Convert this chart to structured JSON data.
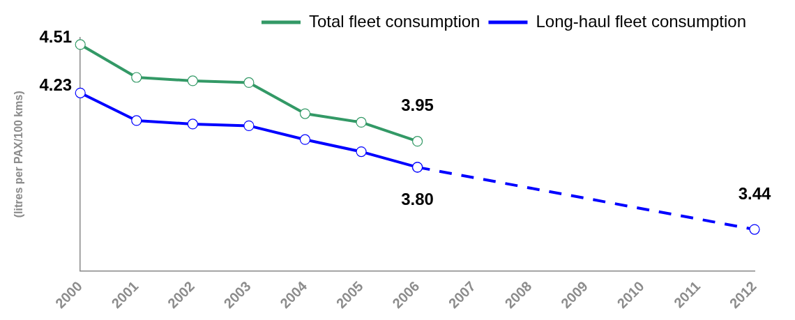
{
  "chart_data": {
    "type": "line",
    "ylabel": "(litres per PAX/100 kms)",
    "categories": [
      "2000",
      "2001",
      "2002",
      "2003",
      "2004",
      "2005",
      "2006",
      "2007",
      "2008",
      "2009",
      "2010",
      "2011",
      "2012"
    ],
    "series": [
      {
        "name": "Total fleet consumption",
        "color": "#339966",
        "values": [
          4.51,
          4.32,
          4.3,
          4.29,
          4.11,
          4.06,
          3.95,
          null,
          null,
          null,
          null,
          null,
          null
        ],
        "value_labels": [
          "4.51",
          null,
          null,
          null,
          null,
          null,
          "3.95",
          null,
          null,
          null,
          null,
          null,
          null
        ]
      },
      {
        "name": "Long-haul fleet consumption",
        "color": "#0000ff",
        "values": [
          4.23,
          4.07,
          4.05,
          4.04,
          3.96,
          3.89,
          3.8,
          null,
          null,
          null,
          null,
          null,
          null
        ],
        "value_labels": [
          "4.23",
          null,
          null,
          null,
          null,
          null,
          "3.80",
          null,
          null,
          null,
          null,
          null,
          null
        ]
      },
      {
        "color": "#0000ff",
        "line_style": "dashed",
        "values": [
          null,
          null,
          null,
          null,
          null,
          null,
          3.8,
          null,
          null,
          null,
          null,
          null,
          3.44
        ],
        "value_labels": [
          null,
          null,
          null,
          null,
          null,
          null,
          null,
          null,
          null,
          null,
          null,
          null,
          "3.44"
        ]
      }
    ],
    "ylim": [
      3.2,
      4.55
    ],
    "tick_labels": "x",
    "grid": false,
    "legend": "top right",
    "marker": "circle",
    "line_style": "solid"
  }
}
